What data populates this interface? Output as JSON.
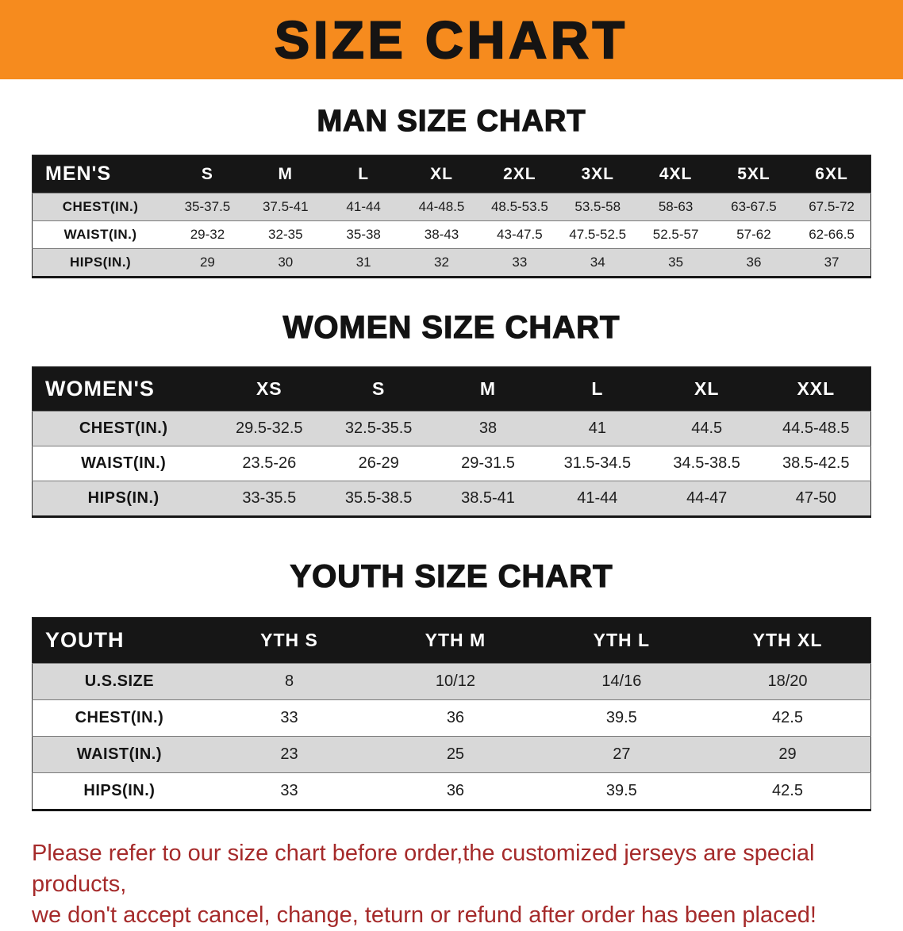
{
  "page": {
    "banner": {
      "title": "SIZE CHART"
    },
    "colors": {
      "banner_bg": "#f68b1e",
      "table_header_bg": "#161616",
      "table_header_text": "#ffffff",
      "row_shade": "#d8d8d8",
      "disclaimer_text": "#a52a2a"
    }
  },
  "sections": [
    {
      "id": "men",
      "heading": "MAN SIZE CHART",
      "table": {
        "header": [
          "MEN'S",
          "S",
          "M",
          "L",
          "XL",
          "2XL",
          "3XL",
          "4XL",
          "5XL",
          "6XL"
        ],
        "rows": [
          [
            "CHEST(IN.)",
            "35-37.5",
            "37.5-41",
            "41-44",
            "44-48.5",
            "48.5-53.5",
            "53.5-58",
            "58-63",
            "63-67.5",
            "67.5-72"
          ],
          [
            "WAIST(IN.)",
            "29-32",
            "32-35",
            "35-38",
            "38-43",
            "43-47.5",
            "47.5-52.5",
            "52.5-57",
            "57-62",
            "62-66.5"
          ],
          [
            "HIPS(IN.)",
            "29",
            "30",
            "31",
            "32",
            "33",
            "34",
            "35",
            "36",
            "37"
          ]
        ]
      }
    },
    {
      "id": "women",
      "heading": "WOMEN SIZE CHART",
      "table": {
        "header": [
          "WOMEN'S",
          "XS",
          "S",
          "M",
          "L",
          "XL",
          "XXL"
        ],
        "rows": [
          [
            "CHEST(IN.)",
            "29.5-32.5",
            "32.5-35.5",
            "38",
            "41",
            "44.5",
            "44.5-48.5"
          ],
          [
            "WAIST(IN.)",
            "23.5-26",
            "26-29",
            "29-31.5",
            "31.5-34.5",
            "34.5-38.5",
            "38.5-42.5"
          ],
          [
            "HIPS(IN.)",
            "33-35.5",
            "35.5-38.5",
            "38.5-41",
            "41-44",
            "44-47",
            "47-50"
          ]
        ]
      }
    },
    {
      "id": "youth",
      "heading": "YOUTH SIZE CHART",
      "table": {
        "header": [
          "YOUTH",
          "YTH S",
          "YTH M",
          "YTH L",
          "YTH XL"
        ],
        "rows": [
          [
            "U.S.SIZE",
            "8",
            "10/12",
            "14/16",
            "18/20"
          ],
          [
            "CHEST(IN.)",
            "33",
            "36",
            "39.5",
            "42.5"
          ],
          [
            "WAIST(IN.)",
            "23",
            "25",
            "27",
            "29"
          ],
          [
            "HIPS(IN.)",
            "33",
            "36",
            "39.5",
            "42.5"
          ]
        ]
      }
    }
  ],
  "disclaimer": {
    "line1": "Please refer to our size chart before order,the customized jerseys are special products,",
    "line2": "we don't accept cancel, change, teturn or refund after order has been placed!"
  }
}
